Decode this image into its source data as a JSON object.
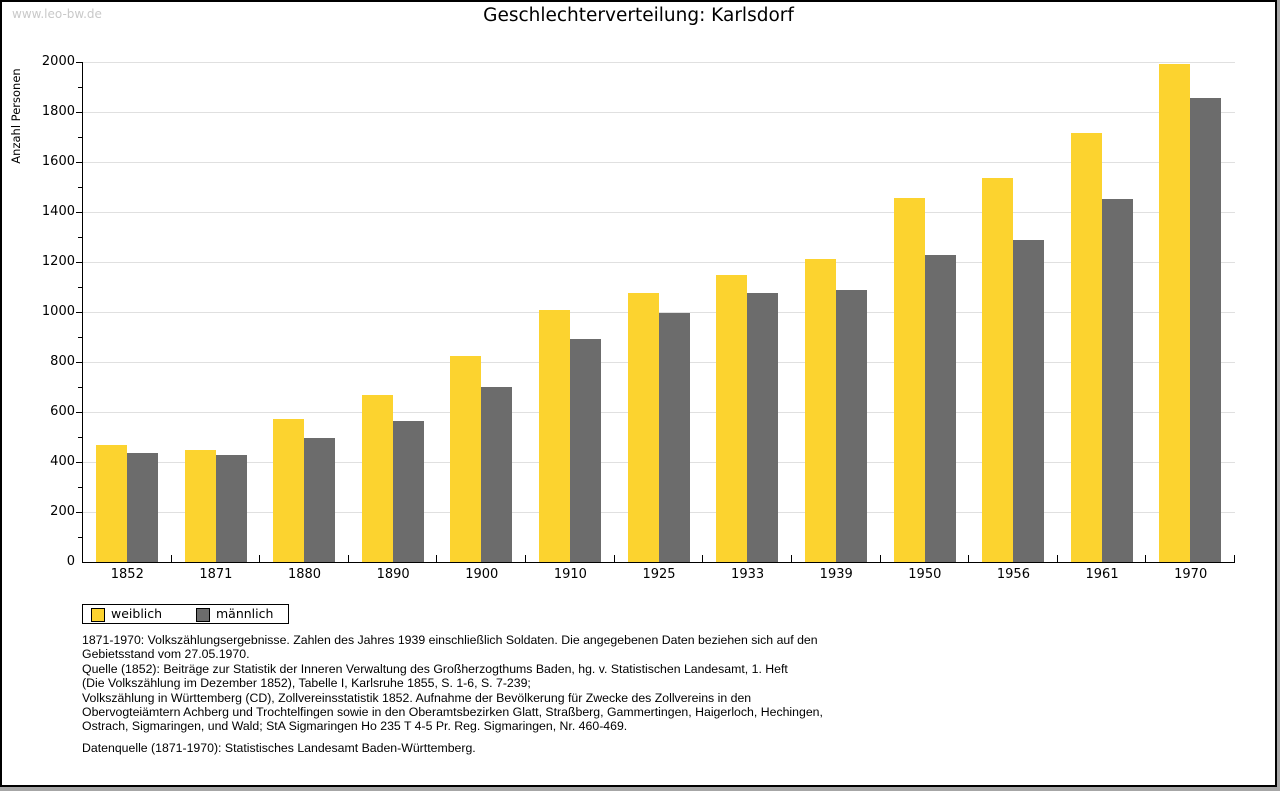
{
  "watermark": "www.leo-bw.de",
  "title": "Geschlechterverteilung: Karlsdorf",
  "chart_data": {
    "type": "bar",
    "title": "Geschlechterverteilung: Karlsdorf",
    "xlabel": "",
    "ylabel": "Anzahl Personen",
    "ylim": [
      0,
      2000
    ],
    "ytick_step": 200,
    "grid": true,
    "legend_position": "bottom-left",
    "categories": [
      "1852",
      "1871",
      "1880",
      "1890",
      "1900",
      "1910",
      "1925",
      "1933",
      "1939",
      "1950",
      "1956",
      "1961",
      "1970"
    ],
    "series": [
      {
        "name": "weiblich",
        "color": "#FCD32F",
        "values": [
          467,
          448,
          572,
          670,
          826,
          1008,
          1078,
          1149,
          1214,
          1455,
          1538,
          1718,
          1991
        ]
      },
      {
        "name": "männlich",
        "color": "#6C6C6C",
        "values": [
          436,
          427,
          497,
          566,
          701,
          893,
          996,
          1078,
          1090,
          1230,
          1287,
          1452,
          1856
        ]
      }
    ]
  },
  "colors": {
    "weiblich": "#FCD32F",
    "männlich": "#6C6C6C",
    "gridline": "#e0e0e0",
    "watermark": "#c9c9c9"
  },
  "footnotes": [
    "1871-1970: Volkszählungsergebnisse. Zahlen des Jahres 1939 einschließlich Soldaten. Die angegebenen Daten beziehen sich auf den",
    "Gebietsstand vom 27.05.1970.",
    "Quelle (1852): Beiträge zur Statistik der Inneren Verwaltung des Großherzogthums Baden, hg. v. Statistischen Landesamt, 1. Heft",
    "(Die Volkszählung im Dezember 1852), Tabelle I, Karlsruhe 1855, S. 1-6, S. 7-239;",
    "Volkszählung in Württemberg (CD), Zollvereinsstatistik 1852. Aufnahme der Bevölkerung für Zwecke des Zollvereins in den",
    "Obervogteiämtern Achberg und Trochtelfingen sowie in den Oberamtsbezirken Glatt, Straßberg, Gammertingen, Haigerloch, Hechingen,",
    "Ostrach, Sigmaringen, und Wald; StA Sigmaringen Ho 235 T 4-5 Pr. Reg. Sigmaringen, Nr. 460-469."
  ],
  "datasource": "Datenquelle (1871-1970): Statistisches Landesamt Baden-Württemberg."
}
